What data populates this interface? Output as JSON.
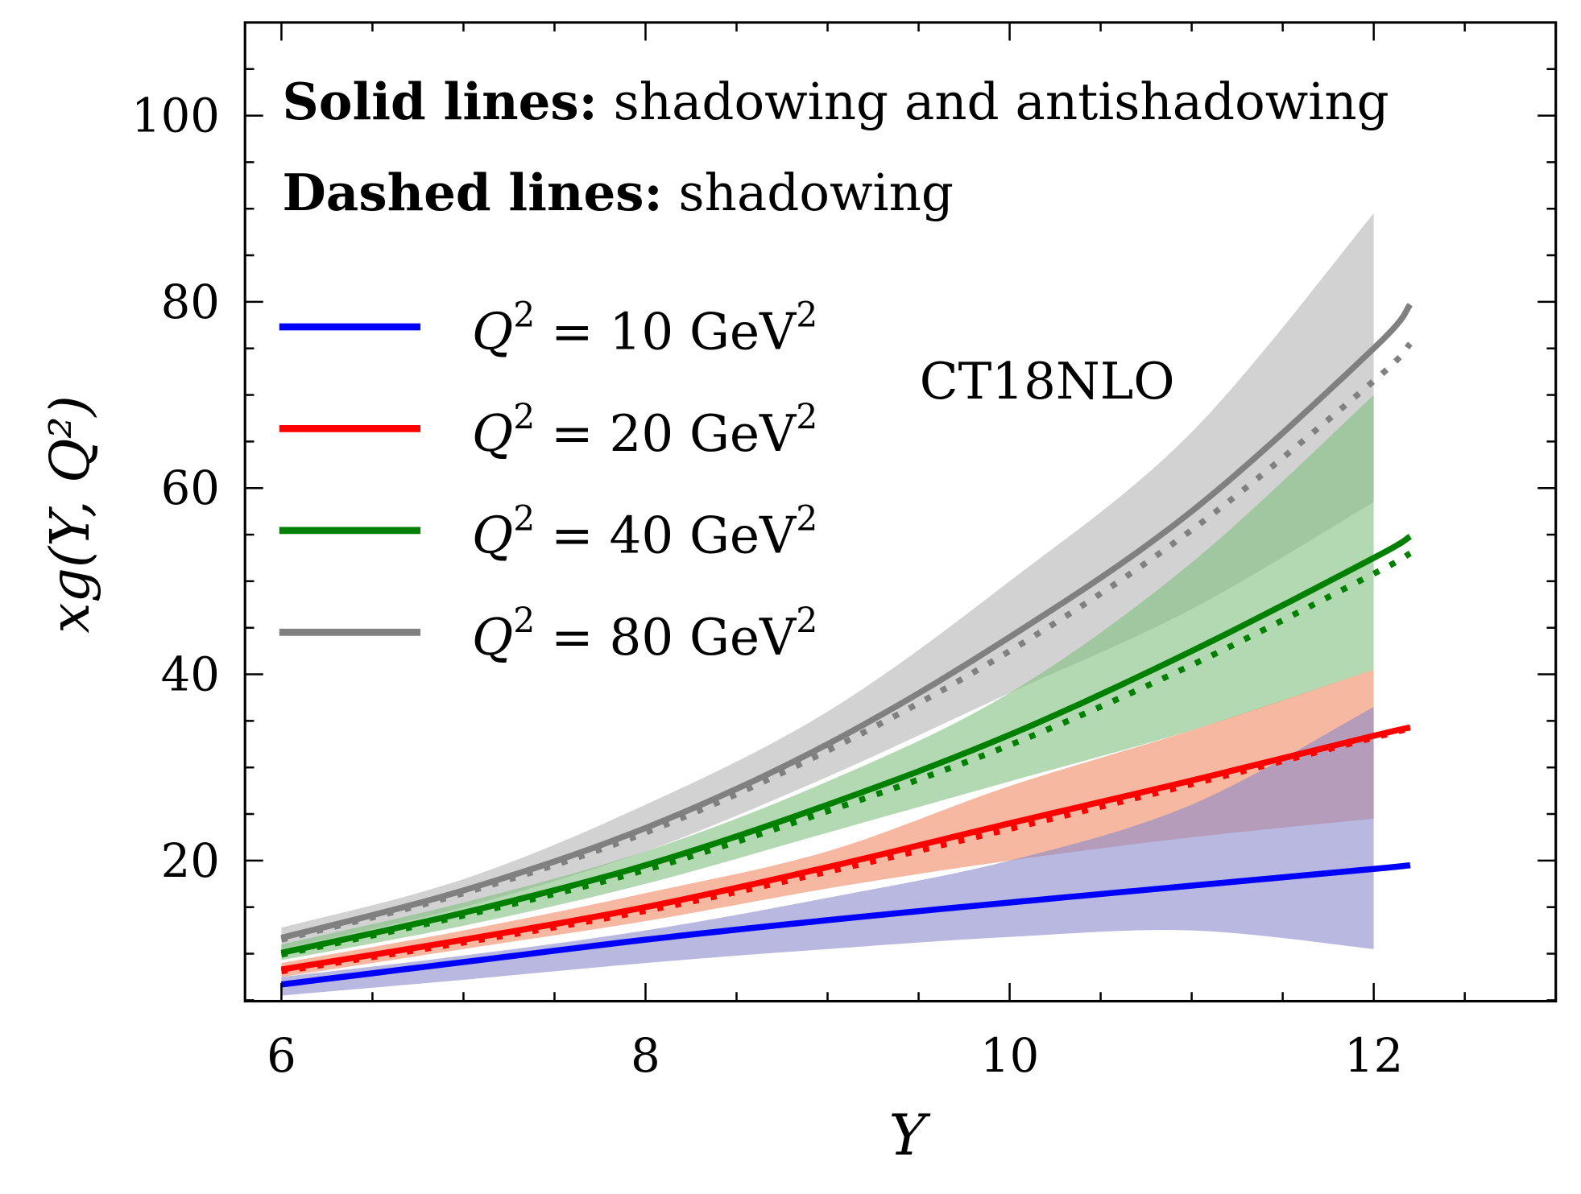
{
  "chart_data": {
    "type": "line",
    "xlabel": "Y",
    "ylabel": "xg(Y, Q²)",
    "xlim": [
      5.8,
      13.0
    ],
    "ylim": [
      4.9,
      110
    ],
    "xticks": [
      "6",
      "8",
      "10",
      "12"
    ],
    "yticks": [
      "20",
      "40",
      "60",
      "80",
      "100"
    ],
    "xtick_values": [
      6,
      8,
      10,
      12
    ],
    "ytick_values": [
      20,
      40,
      60,
      80,
      100
    ],
    "grid": false,
    "legend_placement": "upper-left",
    "annotations": {
      "solid_label": "Solid lines:",
      "solid_text": "shadowing and antishadowing",
      "dashed_label": "Dashed lines:",
      "dashed_text": "shadowing",
      "pdf_set": "CT18NLO"
    },
    "x": [
      6,
      7,
      8,
      9,
      10,
      11,
      12,
      12.2
    ],
    "series": [
      {
        "name": "Q² = 10 GeV²",
        "color": "#0000ff",
        "band_color": "#8888cc",
        "solid": [
          6.7,
          9.1,
          11.5,
          13.6,
          15.5,
          17.3,
          19.1,
          19.5
        ],
        "dashed": null,
        "band_x": [
          6,
          7,
          8,
          9,
          10,
          11,
          12
        ],
        "band_low": [
          5.5,
          7.2,
          9.0,
          10.5,
          11.8,
          12.5,
          10.5
        ],
        "band_high": [
          7.5,
          9.8,
          12.5,
          16.0,
          20.0,
          26.0,
          36.5
        ]
      },
      {
        "name": "Q² = 20 GeV²",
        "color": "#ff0000",
        "band_color": "#f08860",
        "solid": [
          8.3,
          11.5,
          15.0,
          19.3,
          24.0,
          28.6,
          33.4,
          34.3
        ],
        "dashed": [
          8.1,
          11.2,
          14.6,
          18.8,
          23.4,
          28.2,
          33.2,
          34.2
        ],
        "band_x": [
          6,
          7,
          8,
          9,
          10,
          11,
          12
        ],
        "band_low": [
          7.5,
          10.5,
          13.5,
          17.0,
          20.0,
          22.5,
          24.5
        ],
        "band_high": [
          9.0,
          12.5,
          16.5,
          21.0,
          28.0,
          34.0,
          40.5
        ]
      },
      {
        "name": "Q² = 40 GeV²",
        "color": "#008000",
        "band_color": "#80c080",
        "solid": [
          10.1,
          14.4,
          19.5,
          26.0,
          33.5,
          42.5,
          52.5,
          54.8
        ],
        "dashed": [
          9.9,
          14.1,
          19.0,
          25.3,
          32.4,
          41.0,
          50.8,
          53.0
        ],
        "band_x": [
          6,
          7,
          8,
          9,
          10,
          11,
          12
        ],
        "band_low": [
          9.3,
          13.0,
          17.5,
          23.0,
          28.5,
          34.0,
          40.5
        ],
        "band_high": [
          11.0,
          15.5,
          21.0,
          28.5,
          38.0,
          52.0,
          70.0
        ]
      },
      {
        "name": "Q² = 80 GeV²",
        "color": "#808080",
        "band_color": "#b4b4b4",
        "solid": [
          11.7,
          16.8,
          23.5,
          32.5,
          44.0,
          57.5,
          75.0,
          79.7
        ],
        "dashed": [
          11.5,
          16.5,
          23.0,
          31.8,
          42.5,
          55.5,
          71.5,
          75.5
        ],
        "band_x": [
          6,
          7,
          8,
          9,
          10,
          11,
          12
        ],
        "band_low": [
          10.5,
          15.0,
          21.0,
          29.0,
          38.0,
          47.0,
          58.5
        ],
        "band_high": [
          12.8,
          18.0,
          26.0,
          36.0,
          50.0,
          66.0,
          89.5
        ]
      }
    ],
    "legend": [
      {
        "q": "Q",
        "sup": "2",
        "eq": " = 10 GeV",
        "sup2": "2"
      },
      {
        "q": "Q",
        "sup": "2",
        "eq": " = 20 GeV",
        "sup2": "2"
      },
      {
        "q": "Q",
        "sup": "2",
        "eq": " = 40 GeV",
        "sup2": "2"
      },
      {
        "q": "Q",
        "sup": "2",
        "eq": " = 80 GeV",
        "sup2": "2"
      }
    ]
  }
}
